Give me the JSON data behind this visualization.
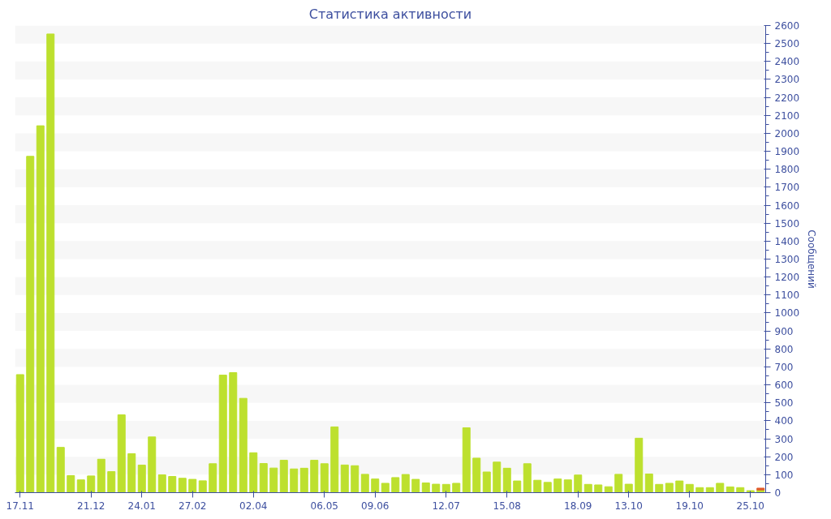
{
  "chart_data": {
    "type": "bar",
    "title": "Статистика активности",
    "ylabel": "Сообщений",
    "categories": [
      "17.11",
      null,
      null,
      null,
      null,
      null,
      null,
      "21.12",
      null,
      null,
      null,
      null,
      "24.01",
      null,
      null,
      null,
      null,
      "27.02",
      null,
      null,
      null,
      null,
      null,
      "02.04",
      null,
      null,
      null,
      null,
      null,
      null,
      "06.05",
      null,
      null,
      null,
      null,
      "09.06",
      null,
      null,
      null,
      null,
      null,
      null,
      "12.07",
      null,
      null,
      null,
      null,
      null,
      "15.08",
      null,
      null,
      null,
      null,
      null,
      null,
      "18.09",
      null,
      null,
      null,
      null,
      "13.10",
      null,
      null,
      null,
      null,
      null,
      "19.10",
      null,
      null,
      null,
      null,
      null,
      "25.10",
      null
    ],
    "stacked": true,
    "series": [
      {
        "color": "#bde02e",
        "values": [
          657,
          1872,
          2042,
          2553,
          252,
          95,
          71,
          93,
          186,
          117,
          433,
          217,
          153,
          310,
          99,
          90,
          80,
          74,
          66,
          161,
          654,
          668,
          525,
          222,
          162,
          137,
          180,
          132,
          136,
          180,
          161,
          366,
          154,
          150,
          102,
          76,
          52,
          84,
          101,
          74,
          54,
          47,
          46,
          52,
          361,
          192,
          115,
          170,
          136,
          65,
          161,
          69,
          57,
          76,
          71,
          98,
          46,
          43,
          33,
          102,
          47,
          303,
          104,
          46,
          52,
          65,
          46,
          28,
          28,
          52,
          32,
          28,
          11,
          15
        ]
      },
      {
        "color": "#e05a2a",
        "values": [
          null,
          null,
          null,
          null,
          null,
          null,
          null,
          null,
          null,
          null,
          null,
          null,
          null,
          null,
          null,
          null,
          null,
          null,
          null,
          null,
          null,
          null,
          null,
          null,
          null,
          null,
          null,
          null,
          null,
          null,
          null,
          null,
          null,
          null,
          null,
          null,
          null,
          null,
          null,
          null,
          null,
          null,
          null,
          null,
          null,
          null,
          null,
          null,
          null,
          null,
          null,
          null,
          null,
          null,
          null,
          null,
          null,
          null,
          null,
          null,
          null,
          null,
          null,
          null,
          null,
          null,
          null,
          null,
          null,
          null,
          null,
          null,
          null,
          10
        ]
      }
    ],
    "ylim": [
      0,
      2600
    ],
    "yticks": [
      0,
      100,
      200,
      300,
      400,
      500,
      600,
      700,
      800,
      900,
      1000,
      1100,
      1200,
      1300,
      1400,
      1500,
      1600,
      1700,
      1800,
      1900,
      2000,
      2100,
      2200,
      2300,
      2400,
      2500,
      2600
    ]
  }
}
